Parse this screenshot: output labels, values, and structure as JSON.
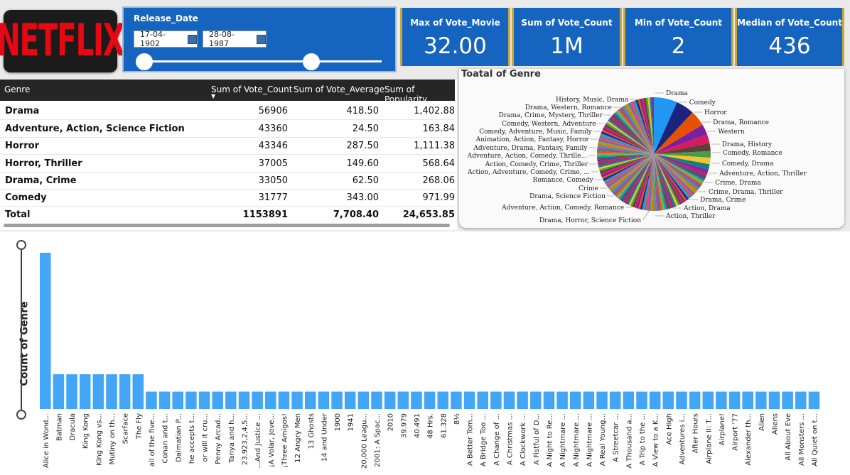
{
  "logo": {
    "text": "NETFLIX"
  },
  "slicer": {
    "title": "Release_Date",
    "start_date": "17-04-1902",
    "end_date": "28-08-1987"
  },
  "kpis": [
    {
      "title": "Max of Vote_Movie",
      "value": "32.00"
    },
    {
      "title": "Sum of Vote_Count",
      "value": "1M"
    },
    {
      "title": "Min of Vote_Count",
      "value": "2"
    },
    {
      "title": "Median of Vote_Count",
      "value": "436"
    }
  ],
  "table": {
    "headers": [
      "Genre",
      "Sum of Vote_Count",
      "Sum of Vote_Average",
      "Sum of Popularity"
    ],
    "rows": [
      [
        "Drama",
        "56906",
        "418.50",
        "1,402.88"
      ],
      [
        "Adventure, Action, Science Fiction",
        "43360",
        "24.50",
        "163.84"
      ],
      [
        "Horror",
        "43346",
        "287.50",
        "1,111.38"
      ],
      [
        "Horror, Thriller",
        "37005",
        "149.60",
        "568.64"
      ],
      [
        "Drama, Crime",
        "33050",
        "62.50",
        "268.06"
      ],
      [
        "Comedy",
        "31777",
        "343.00",
        "971.99"
      ]
    ],
    "total": [
      "Total",
      "1153891",
      "7,708.40",
      "24,653.85"
    ]
  },
  "pie": {
    "title": "Toatal of Genre",
    "labels_right": [
      "Drama",
      "Comedy",
      "Horror",
      "Drama, Romance",
      "Western",
      "Drama, History",
      "Comedy, Romance",
      "Comedy, Drama",
      "Adventure, Action, Thriller",
      "Crime, Drama",
      "Crime, Drama, Thriller",
      "Drama, Crime",
      "Action, Drama",
      "Action, Thriller"
    ],
    "labels_left": [
      "History, Music, Drama",
      "Drama, Western, Romance",
      "Drama, Crime, Mystery, Thriller",
      "Comedy, Western, Adventure",
      "Comedy, Adventure, Music, Family",
      "Animation, Action, Fantasy, Horror",
      "Adventure, Drama, Fantasy, Family",
      "Adventure, Action, Comedy, Thrille...",
      "Action, Comedy, Crime, Thriller",
      "Action, Adventure, Comedy, Crime, ...",
      "Romance, Comedy",
      "Crime",
      "Drama, Science Fiction",
      "Adventure, Action, Comedy, Romance"
    ],
    "label_bottom": "Drama, Horror, Science Fiction"
  },
  "chart_data": {
    "type": "bar",
    "ylabel": "Count of Genre",
    "color": "#42a5f5",
    "categories": [
      "Alice in Wond...",
      "Batman",
      "Dracula",
      "King Kong",
      "King Kong vs...",
      "Mutiny on th...",
      "Scarface",
      "The Fly",
      "all of the five...",
      "Conan and t...",
      "Dalmatian P...",
      "he accepts t...",
      "or will it cru...",
      "Penny Arcad...",
      "Tanya and h...",
      "23.923,2,4,5...",
      "...And Justice ...",
      "¡A Volar, Jove...",
      "¡Three Amigos!",
      "12 Angry Men",
      "13 Ghosts",
      "14 and Under",
      "1900",
      "1941",
      "20,000 Leagu...",
      "2001: A Spac...",
      "2010",
      "39.979",
      "40.491",
      "48 Hrs.",
      "61.328",
      "8½",
      "A Better Tom...",
      "A Bridge Too ...",
      "A Change of ...",
      "A Christmas ...",
      "A Clockwork ...",
      "A Fistful of D...",
      "A Night to Re...",
      "A Nightmare ...",
      "A Nightmare ...",
      "A Nightmare ...",
      "A Real Young...",
      "A Streetcar ...",
      "A Thousand a...",
      "A Trip to the ...",
      "A View to a K...",
      "Ace High",
      "Adventures i...",
      "After Hours",
      "Airplane II: T...",
      "Airplane!",
      "Airport '77",
      "Alexander th...",
      "Alien",
      "Aliens",
      "All About Eve",
      "All Monsters ...",
      "All Quiet on t..."
    ],
    "values": [
      9,
      2,
      2,
      2,
      2,
      2,
      2,
      2,
      1,
      1,
      1,
      1,
      1,
      1,
      1,
      1,
      1,
      1,
      1,
      1,
      1,
      1,
      1,
      1,
      1,
      1,
      1,
      1,
      1,
      1,
      1,
      1,
      1,
      1,
      1,
      1,
      1,
      1,
      1,
      1,
      1,
      1,
      1,
      1,
      1,
      1,
      1,
      1,
      1,
      1,
      1,
      1,
      1,
      1,
      1,
      1,
      1,
      1,
      1
    ],
    "ylim": [
      0,
      9
    ]
  }
}
